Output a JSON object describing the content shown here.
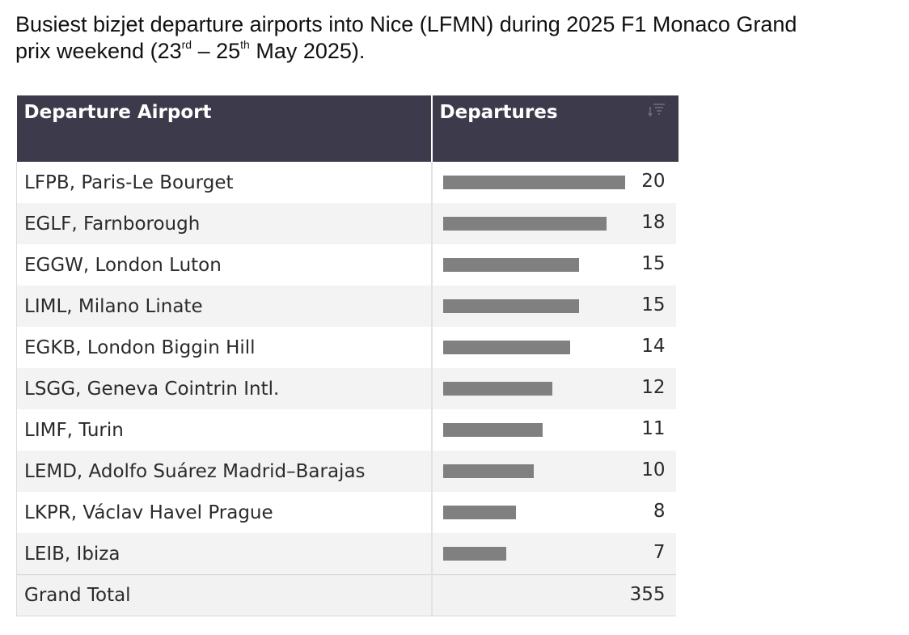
{
  "title": {
    "line1": "Busiest bizjet departure airports into Nice (LFMN) during 2025 F1 Monaco Grand",
    "line2_a": "prix weekend (23",
    "sup_a": "rd",
    "line2_b": " – 25",
    "sup_b": "th",
    "line2_c": " May 2025)."
  },
  "table": {
    "col1_header": "Departure Airport",
    "col2_header": "Departures",
    "sort_icon": "sort-descending-icon",
    "total_label": "Grand Total",
    "total_value": "355"
  },
  "colors": {
    "header_bg": "#3d3a4b",
    "bar": "#808080",
    "stripe": "#f3f3f3"
  },
  "chart_data": {
    "type": "bar",
    "orientation": "horizontal",
    "categories": [
      "LFPB, Paris-Le Bourget",
      "EGLF, Farnborough",
      "EGGW, London Luton",
      "LIML, Milano Linate",
      "EGKB, London Biggin Hill",
      "LSGG, Geneva Cointrin Intl.",
      "LIMF, Turin",
      "LEMD, Adolfo Suárez Madrid–Barajas",
      "LKPR, Václav Havel Prague",
      "LEIB, Ibiza"
    ],
    "values": [
      20,
      18,
      15,
      15,
      14,
      12,
      11,
      10,
      8,
      7
    ],
    "xlim": [
      0,
      20
    ]
  }
}
